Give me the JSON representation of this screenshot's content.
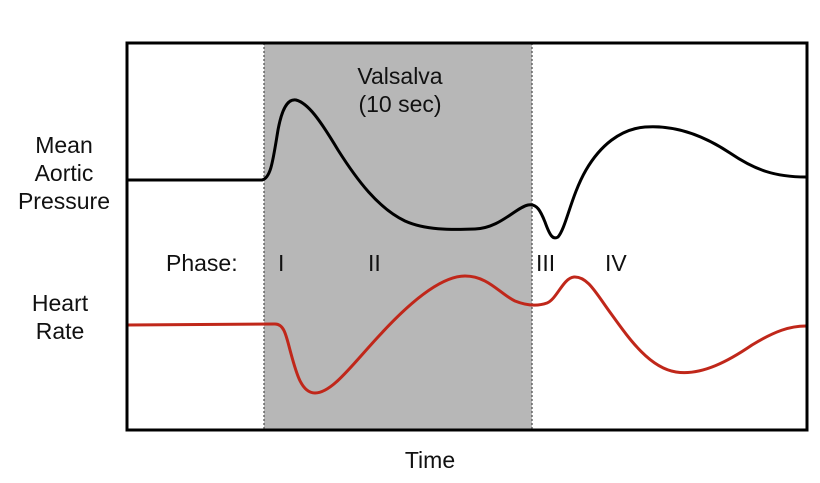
{
  "labels": {
    "mean_aortic_pressure": [
      "Mean",
      "Aortic",
      "Pressure"
    ],
    "heart_rate": [
      "Heart",
      "Rate"
    ],
    "valsalva": [
      "Valsalva",
      "(10 sec)"
    ],
    "phase_prefix": "Phase:",
    "phases": [
      "I",
      "II",
      "III",
      "IV"
    ],
    "x_axis": "Time"
  },
  "colors": {
    "frame": "#000000",
    "valsalva_band": "#b7b7b7",
    "pressure_trace": "#000000",
    "heart_rate_trace": "#c0271a"
  }
}
